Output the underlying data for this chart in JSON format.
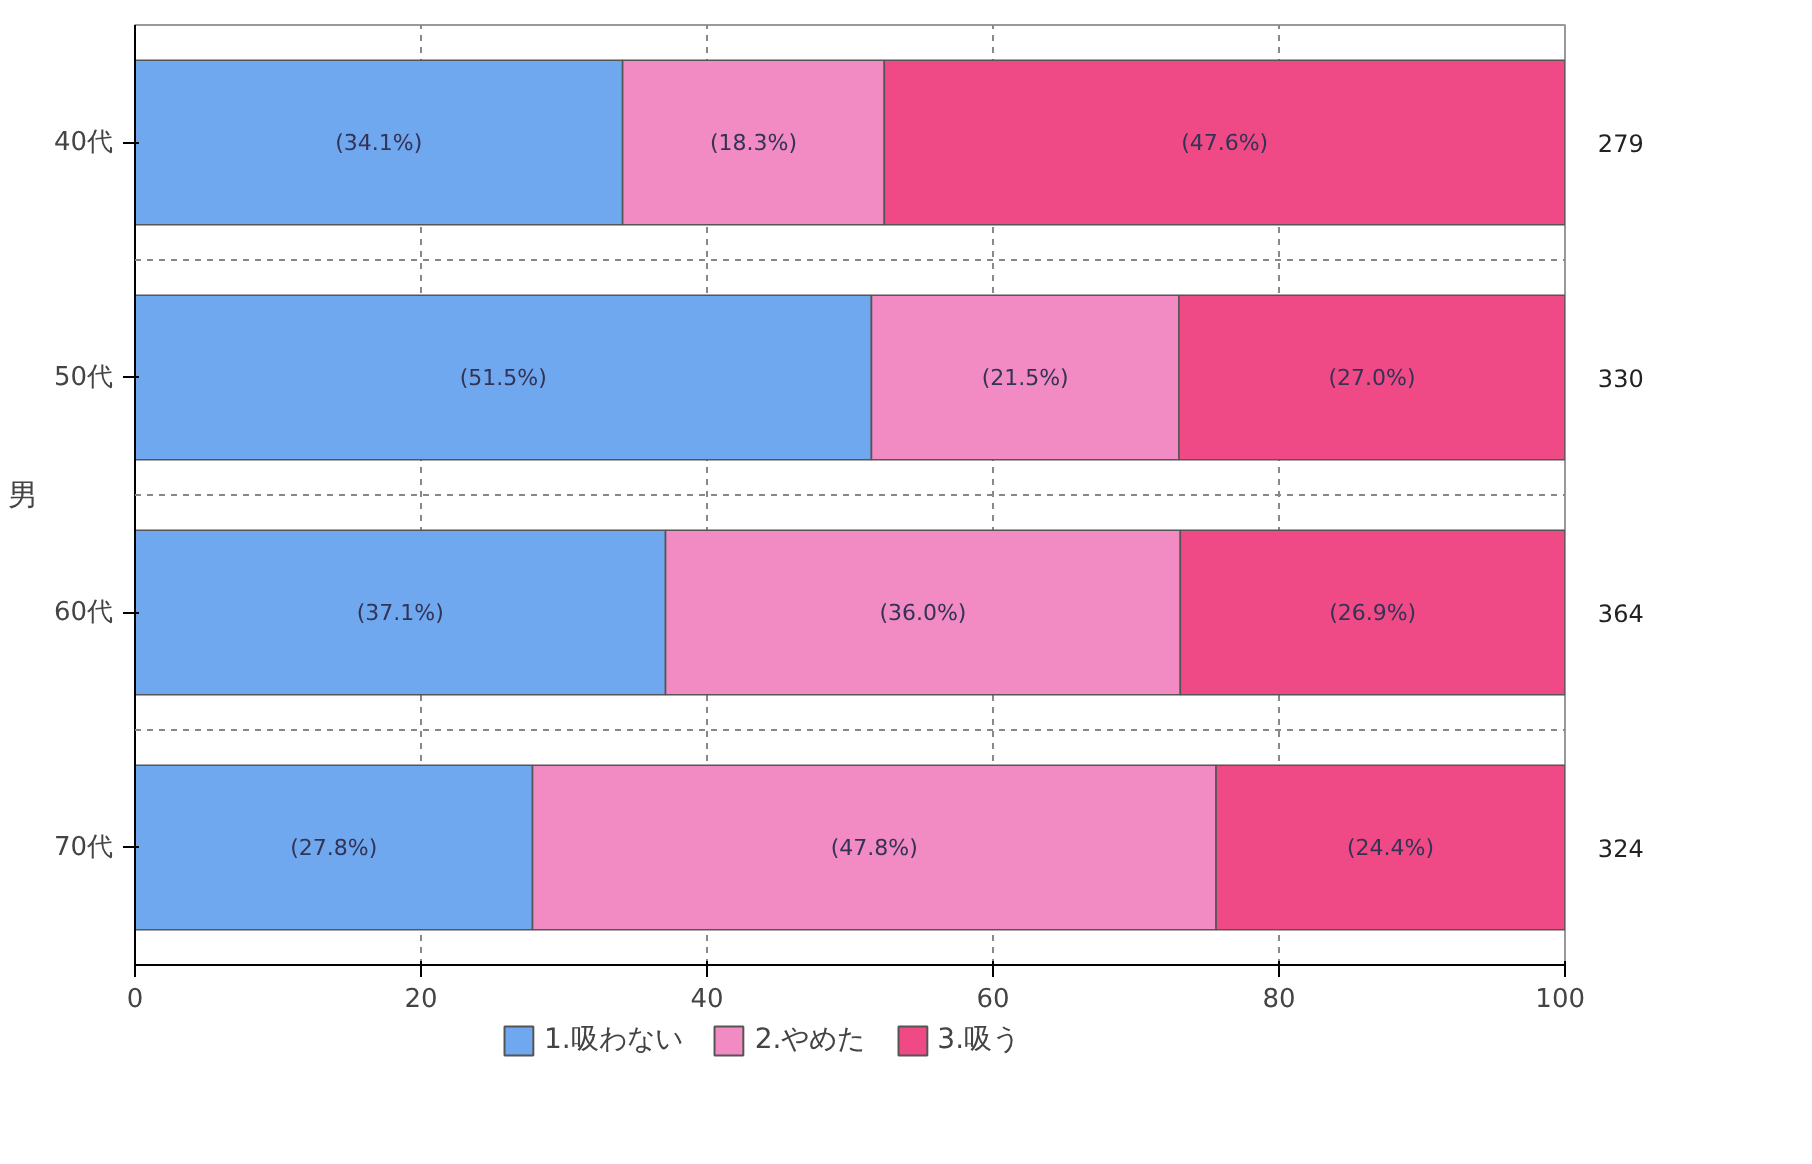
{
  "chart_data": {
    "type": "bar",
    "orientation": "horizontal",
    "stacked": true,
    "ylabel": "男",
    "categories": [
      "40代",
      "50代",
      "60代",
      "70代"
    ],
    "series": [
      {
        "name": "1.吸わない",
        "color": "#6fa8ef",
        "values": [
          34.1,
          51.5,
          37.1,
          27.8
        ],
        "value_labels": [
          "(34.1%)",
          "(51.5%)",
          "(37.1%)",
          "(27.8%)"
        ]
      },
      {
        "name": "2.やめた",
        "color": "#f28ac4",
        "values": [
          18.3,
          21.5,
          36.0,
          47.8
        ],
        "value_labels": [
          "(18.3%)",
          "(21.5%)",
          "(36.0%)",
          "(47.8%)"
        ]
      },
      {
        "name": "3.吸う",
        "color": "#f04a86",
        "values": [
          47.6,
          27.0,
          26.9,
          24.4
        ],
        "value_labels": [
          "(47.6%)",
          "(27.0%)",
          "(26.9%)",
          "(24.4%)"
        ]
      }
    ],
    "annotations": [
      "279",
      "330",
      "364",
      "324"
    ],
    "xlim": [
      0,
      100
    ],
    "xticks": [
      0,
      20,
      40,
      60,
      80,
      100
    ],
    "grid": true,
    "legend": "bottom"
  }
}
